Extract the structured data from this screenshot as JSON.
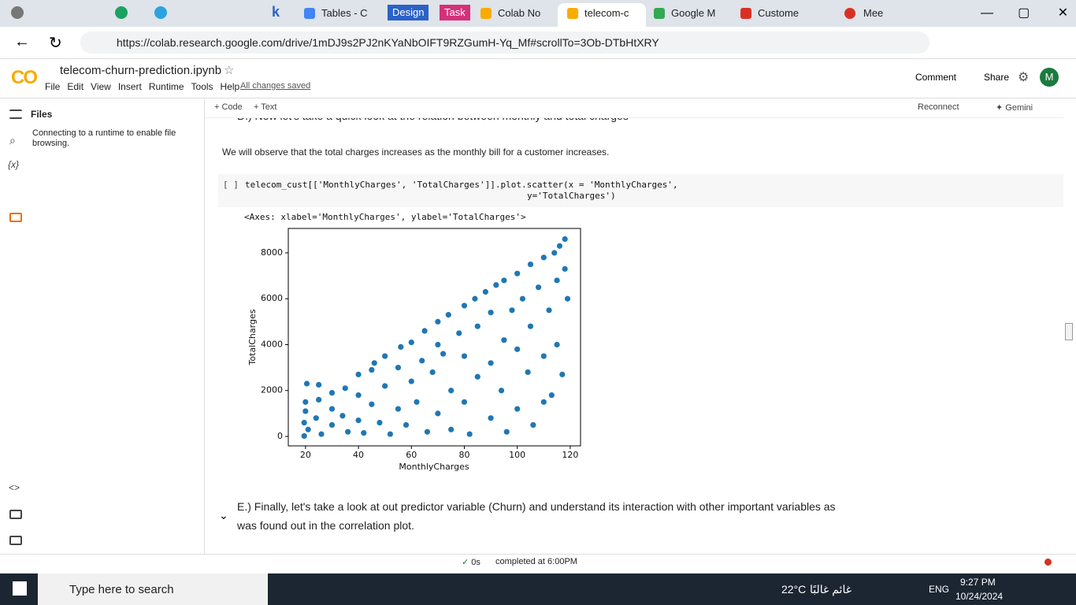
{
  "browser": {
    "tabs": [
      "Tables - C",
      "Design",
      "Task",
      "Colab No",
      "telecom-c",
      "Google M",
      "Custome",
      "Mee"
    ],
    "url": "https://colab.research.google.com/drive/1mDJ9s2PJ2nKYaNbOIFT9RZGumH-Yq_Mf#scrollTo=3Ob-DTbHtXRY"
  },
  "colab": {
    "logo": "CO",
    "filename": "telecom-churn-prediction.ipynb",
    "menus": [
      "File",
      "Edit",
      "View",
      "Insert",
      "Runtime",
      "Tools",
      "Help"
    ],
    "saved": "All changes saved",
    "comment": "Comment",
    "share": "Share",
    "avatar": "M",
    "add_code": "+ Code",
    "add_text": "+ Text",
    "reconnect": "Reconnect",
    "gemini": "Gemini"
  },
  "sidebar": {
    "title": "Files",
    "message": "Connecting to a runtime to enable file browsing.",
    "variables_icon": "{x}"
  },
  "notebook": {
    "heading_d": "D.) Now let's take a quick look at the relation between monthly and total charges",
    "paragraph": "We will observe that the total charges increases as the monthly bill for a customer increases.",
    "cell_prompt": "[ ]",
    "code_lines": [
      "telecom_cust[['MonthlyCharges', 'TotalCharges']].plot.scatter(x = 'MonthlyCharges',",
      "y='TotalCharges')"
    ],
    "output": "<Axes: xlabel='MonthlyCharges', ylabel='TotalCharges'>",
    "heading_e": "E.) Finally, let's take a look at out predictor variable (Churn) and understand its interaction with other important variables as was found out in the correlation plot."
  },
  "chart_data": {
    "type": "scatter",
    "xlabel": "MonthlyCharges",
    "ylabel": "TotalCharges",
    "color": "#1f77b4",
    "xlim": [
      13.5,
      123.9
    ],
    "ylim": [
      -412,
      9064
    ],
    "xticks": [
      20,
      40,
      60,
      80,
      100,
      120
    ],
    "yticks": [
      0,
      2000,
      4000,
      6000,
      8000
    ],
    "x": [
      19.5,
      19.5,
      20,
      20,
      20.5,
      21,
      24,
      25,
      25,
      26,
      30,
      30,
      30,
      34,
      35,
      36,
      40,
      40,
      40,
      42,
      45,
      45,
      46,
      48,
      50,
      50,
      52,
      55,
      55,
      56,
      58,
      60,
      60,
      62,
      64,
      65,
      66,
      68,
      70,
      70,
      70,
      72,
      74,
      75,
      75,
      78,
      80,
      80,
      80,
      82,
      84,
      85,
      85,
      88,
      90,
      90,
      90,
      92,
      94,
      95,
      95,
      96,
      98,
      100,
      100,
      100,
      102,
      104,
      105,
      105,
      106,
      108,
      110,
      110,
      110,
      112,
      114,
      115,
      115,
      116,
      117,
      118,
      118,
      119,
      113
    ],
    "y": [
      20,
      600,
      1100,
      1500,
      2300,
      300,
      800,
      1600,
      2250,
      100,
      500,
      1200,
      1900,
      900,
      2100,
      200,
      700,
      1800,
      2700,
      150,
      1400,
      2900,
      3200,
      600,
      2200,
      3500,
      100,
      1200,
      3000,
      3900,
      500,
      2400,
      4100,
      1500,
      3300,
      4600,
      200,
      2800,
      1000,
      4000,
      5000,
      3600,
      5300,
      300,
      2000,
      4500,
      1500,
      3500,
      5700,
      100,
      6000,
      2600,
      4800,
      6300,
      800,
      3200,
      5400,
      6600,
      2000,
      4200,
      6800,
      200,
      5500,
      1200,
      3800,
      7100,
      6000,
      2800,
      7500,
      4800,
      500,
      6500,
      3500,
      7800,
      1500,
      5500,
      8000,
      6800,
      4000,
      8300,
      2700,
      8600,
      7300,
      6000,
      1800
    ]
  },
  "status": {
    "time": "0s",
    "completed": "completed at 6:00PM"
  },
  "taskbar": {
    "search": "Type here to search",
    "temperature": "22°C",
    "weather": "غائم غالبًا",
    "language": "ENG",
    "clock": "9:27 PM",
    "date": "10/24/2024"
  }
}
